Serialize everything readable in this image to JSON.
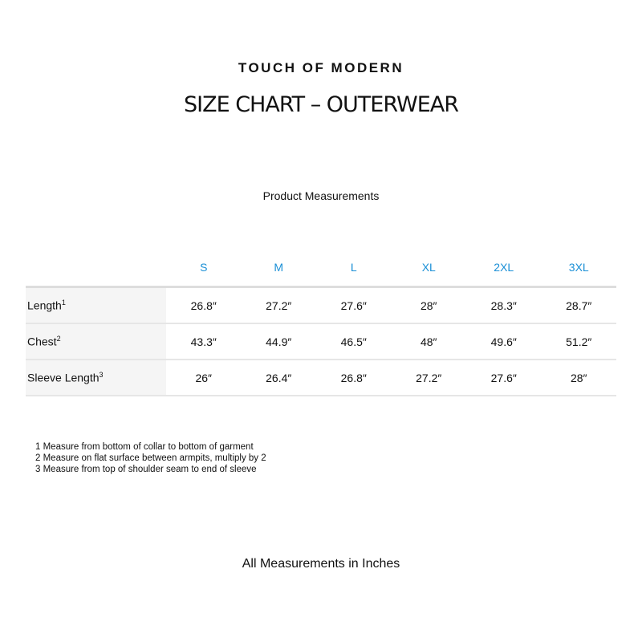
{
  "brand": "TOUCH OF MODERN",
  "title": "SIZE CHART – OUTERWEAR",
  "subtitle": "Product Measurements",
  "accent_color": "#1a8fd6",
  "table": {
    "sizes": [
      "S",
      "M",
      "L",
      "XL",
      "2XL",
      "3XL"
    ],
    "rows": [
      {
        "label": "Length",
        "note": "1",
        "values": [
          "26.8″",
          "27.2″",
          "27.6″",
          "28″",
          "28.3″",
          "28.7″"
        ]
      },
      {
        "label": "Chest",
        "note": "2",
        "values": [
          "43.3″",
          "44.9″",
          "46.5″",
          "48″",
          "49.6″",
          "51.2″"
        ]
      },
      {
        "label": "Sleeve Length",
        "note": "3",
        "values": [
          "26″",
          "26.4″",
          "26.8″",
          "27.2″",
          "27.6″",
          "28″"
        ]
      }
    ]
  },
  "notes": [
    "1 Measure from bottom of collar to bottom of garment",
    "2 Measure on flat surface between armpits, multiply by 2",
    "3 Measure from top of shoulder seam to end of sleeve"
  ],
  "footer": "All Measurements in Inches"
}
